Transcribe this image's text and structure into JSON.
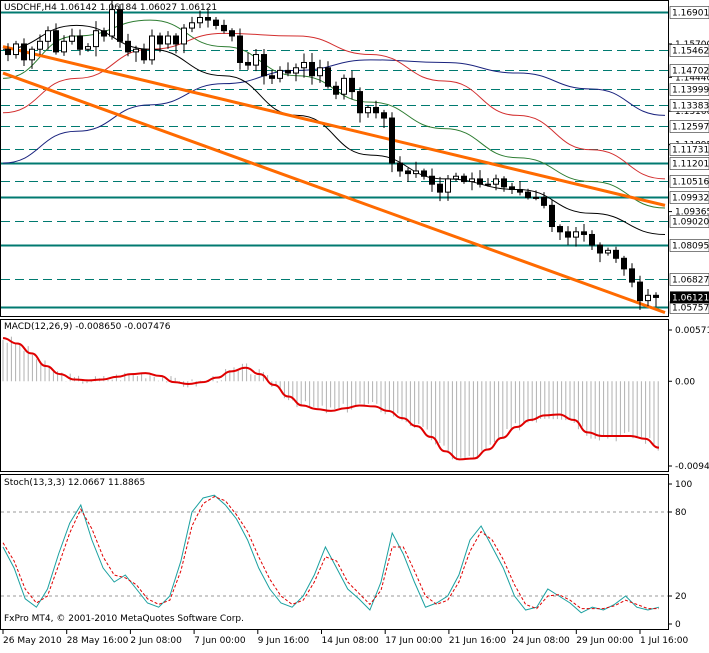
{
  "header": {
    "symbol": "USDCHF,H4",
    "ohlc": "1.06142 1.06184 1.06027 1.06121"
  },
  "chart_data": [
    {
      "type": "candlestick",
      "title": "USDCHF,H4",
      "ylim": [
        1.0557,
        1.1721
      ],
      "ohlc_last": {
        "open": 1.06142,
        "high": 1.06184,
        "low": 1.06027,
        "close": 1.06121
      },
      "close_path": [
        1.153,
        1.157,
        1.151,
        1.155,
        1.158,
        1.162,
        1.154,
        1.158,
        1.16,
        1.155,
        1.156,
        1.162,
        1.16,
        1.17,
        1.158,
        1.154,
        1.155,
        1.151,
        1.16,
        1.157,
        1.16,
        1.157,
        1.163,
        1.165,
        1.167,
        1.166,
        1.164,
        1.162,
        1.16,
        1.15,
        1.149,
        1.153,
        1.145,
        1.144,
        1.147,
        1.146,
        1.148,
        1.15,
        1.145,
        1.148,
        1.141,
        1.138,
        1.144,
        1.139,
        1.131,
        1.133,
        1.131,
        1.129,
        1.112,
        1.109,
        1.108,
        1.109,
        1.107,
        1.104,
        1.101,
        1.106,
        1.107,
        1.105,
        1.106,
        1.104,
        1.104,
        1.106,
        1.103,
        1.102,
        1.101,
        1.099,
        1.099,
        1.096,
        1.088,
        1.086,
        1.084,
        1.086,
        1.085,
        1.081,
        1.078,
        1.079,
        1.076,
        1.072,
        1.067,
        1.06,
        1.062,
        1.0612
      ],
      "horizontal_levels": [
        {
          "value": 1.16901,
          "style": "solid",
          "label": "1.16901"
        },
        {
          "value": 1.15462,
          "style": "dashed",
          "label": "1.15462"
        },
        {
          "value": 1.14702,
          "style": "dashed",
          "label": "1.14702"
        },
        {
          "value": 1.13999,
          "style": "dashed",
          "label": "1.13999"
        },
        {
          "value": 1.13383,
          "style": "dashed",
          "label": "1.13383"
        },
        {
          "value": 1.12597,
          "style": "dashed",
          "label": "1.12597"
        },
        {
          "value": 1.11731,
          "style": "dashed",
          "label": "1.11731"
        },
        {
          "value": 1.11201,
          "style": "solid",
          "label": "1.11201"
        },
        {
          "value": 1.10516,
          "style": "dashed",
          "label": "1.10516"
        },
        {
          "value": 1.09932,
          "style": "solid",
          "label": "1.09932"
        },
        {
          "value": 1.0902,
          "style": "dashed",
          "label": "1.09020"
        },
        {
          "value": 1.08095,
          "style": "solid",
          "label": "1.08095"
        },
        {
          "value": 1.06827,
          "style": "dashed",
          "label": "1.06827"
        },
        {
          "value": 1.05757,
          "style": "solid",
          "label": "1.05757"
        }
      ],
      "price_tick_labels": [
        "1.15700",
        "1.14440",
        "1.13160",
        "1.11895",
        "1.09365"
      ],
      "current_price_label": "1.06121",
      "trend_channel": [
        {
          "name": "",
          "from": [
            0,
            1.156
          ],
          "to": [
            1,
            1.096
          ]
        },
        {
          "name": "",
          "from": [
            0,
            1.146
          ],
          "to": [
            1,
            1.0555
          ]
        }
      ],
      "moving_averages": [
        {
          "name": "",
          "color": "#2e7d32",
          "values": [
            1.144,
            1.16,
            1.166,
            1.156,
            1.145,
            1.135,
            1.125,
            1.114,
            1.105,
            1.095
          ]
        },
        {
          "name": "",
          "color": "#1a237e",
          "values": [
            1.112,
            1.124,
            1.134,
            1.142,
            1.147,
            1.151,
            1.15,
            1.146,
            1.14,
            1.13
          ]
        },
        {
          "name": "",
          "color": "#d32f2f",
          "values": [
            1.131,
            1.144,
            1.155,
            1.161,
            1.16,
            1.153,
            1.143,
            1.13,
            1.117,
            1.106
          ]
        },
        {
          "name": "",
          "color": "#000000",
          "values": [
            1.155,
            1.164,
            1.155,
            1.145,
            1.13,
            1.115,
            1.106,
            1.102,
            1.093,
            1.085
          ]
        }
      ]
    },
    {
      "type": "histogram+line",
      "title": "MACD(12,26,9) -0.008650 -0.007476",
      "ylim": [
        -0.00944,
        0.00571
      ],
      "tick_labels": [
        "0.00571",
        "0.00",
        "-0.00944"
      ],
      "macd_signal": [
        0.0048,
        0.0042,
        0.0031,
        0.0017,
        0.0008,
        0.0002,
        0.0001,
        0.0002,
        0.0005,
        0.0008,
        0.0009,
        0.0006,
        -0.0001,
        -0.0003,
        -0.0001,
        0.0004,
        0.0011,
        0.0015,
        0.0008,
        -0.0004,
        -0.0017,
        -0.0027,
        -0.0031,
        -0.0033,
        -0.003,
        -0.0027,
        -0.0028,
        -0.0033,
        -0.0041,
        -0.005,
        -0.0062,
        -0.0078,
        -0.0087,
        -0.0086,
        -0.0076,
        -0.0063,
        -0.0051,
        -0.0043,
        -0.0038,
        -0.0037,
        -0.0043,
        -0.0057,
        -0.0061,
        -0.0061,
        -0.0061,
        -0.0064,
        -0.0074
      ]
    },
    {
      "type": "line",
      "title": "Stoch(13,3,3) 12.0667 11.8865",
      "ylim": [
        0,
        100
      ],
      "tick_labels": [
        "100",
        "80",
        "20",
        "0"
      ],
      "main": [
        55,
        40,
        18,
        12,
        25,
        50,
        72,
        85,
        60,
        40,
        30,
        35,
        25,
        15,
        12,
        20,
        45,
        80,
        90,
        92,
        85,
        75,
        60,
        40,
        25,
        15,
        12,
        20,
        35,
        55,
        40,
        25,
        18,
        10,
        30,
        65,
        50,
        30,
        12,
        15,
        20,
        35,
        60,
        70,
        55,
        40,
        20,
        10,
        12,
        25,
        20,
        15,
        8,
        12,
        10,
        14,
        20,
        12,
        10,
        12
      ],
      "signal": [
        58,
        45,
        25,
        15,
        20,
        42,
        65,
        82,
        68,
        48,
        35,
        33,
        28,
        18,
        14,
        17,
        38,
        70,
        86,
        91,
        88,
        78,
        66,
        48,
        32,
        20,
        14,
        17,
        30,
        48,
        45,
        30,
        22,
        14,
        24,
        55,
        55,
        38,
        20,
        14,
        17,
        30,
        52,
        66,
        60,
        46,
        28,
        14,
        11,
        20,
        21,
        17,
        11,
        11,
        11,
        13,
        17,
        14,
        11,
        11
      ]
    }
  ],
  "footer": {
    "copyright": "FxPro MT4, © 2001-2010 MetaQuotes Software Corp."
  },
  "time_labels": [
    "26 May 2010",
    "28 May 16:00",
    "2 Jun 08:00",
    "7 Jun 00:00",
    "9 Jun 16:00",
    "14 Jun 08:00",
    "17 Jun 00:00",
    "21 Jun 16:00",
    "24 Jun 08:00",
    "29 Jun 00:00",
    "1 Jul 16:00"
  ],
  "colors": {
    "bullish": "#ffffff",
    "bearish": "#000000",
    "channel": "#ff6a00",
    "level_line": "#007a70",
    "macd_signal": "#e00000",
    "stoch_main": "#1aa0a0",
    "stoch_signal": "#e00000"
  }
}
